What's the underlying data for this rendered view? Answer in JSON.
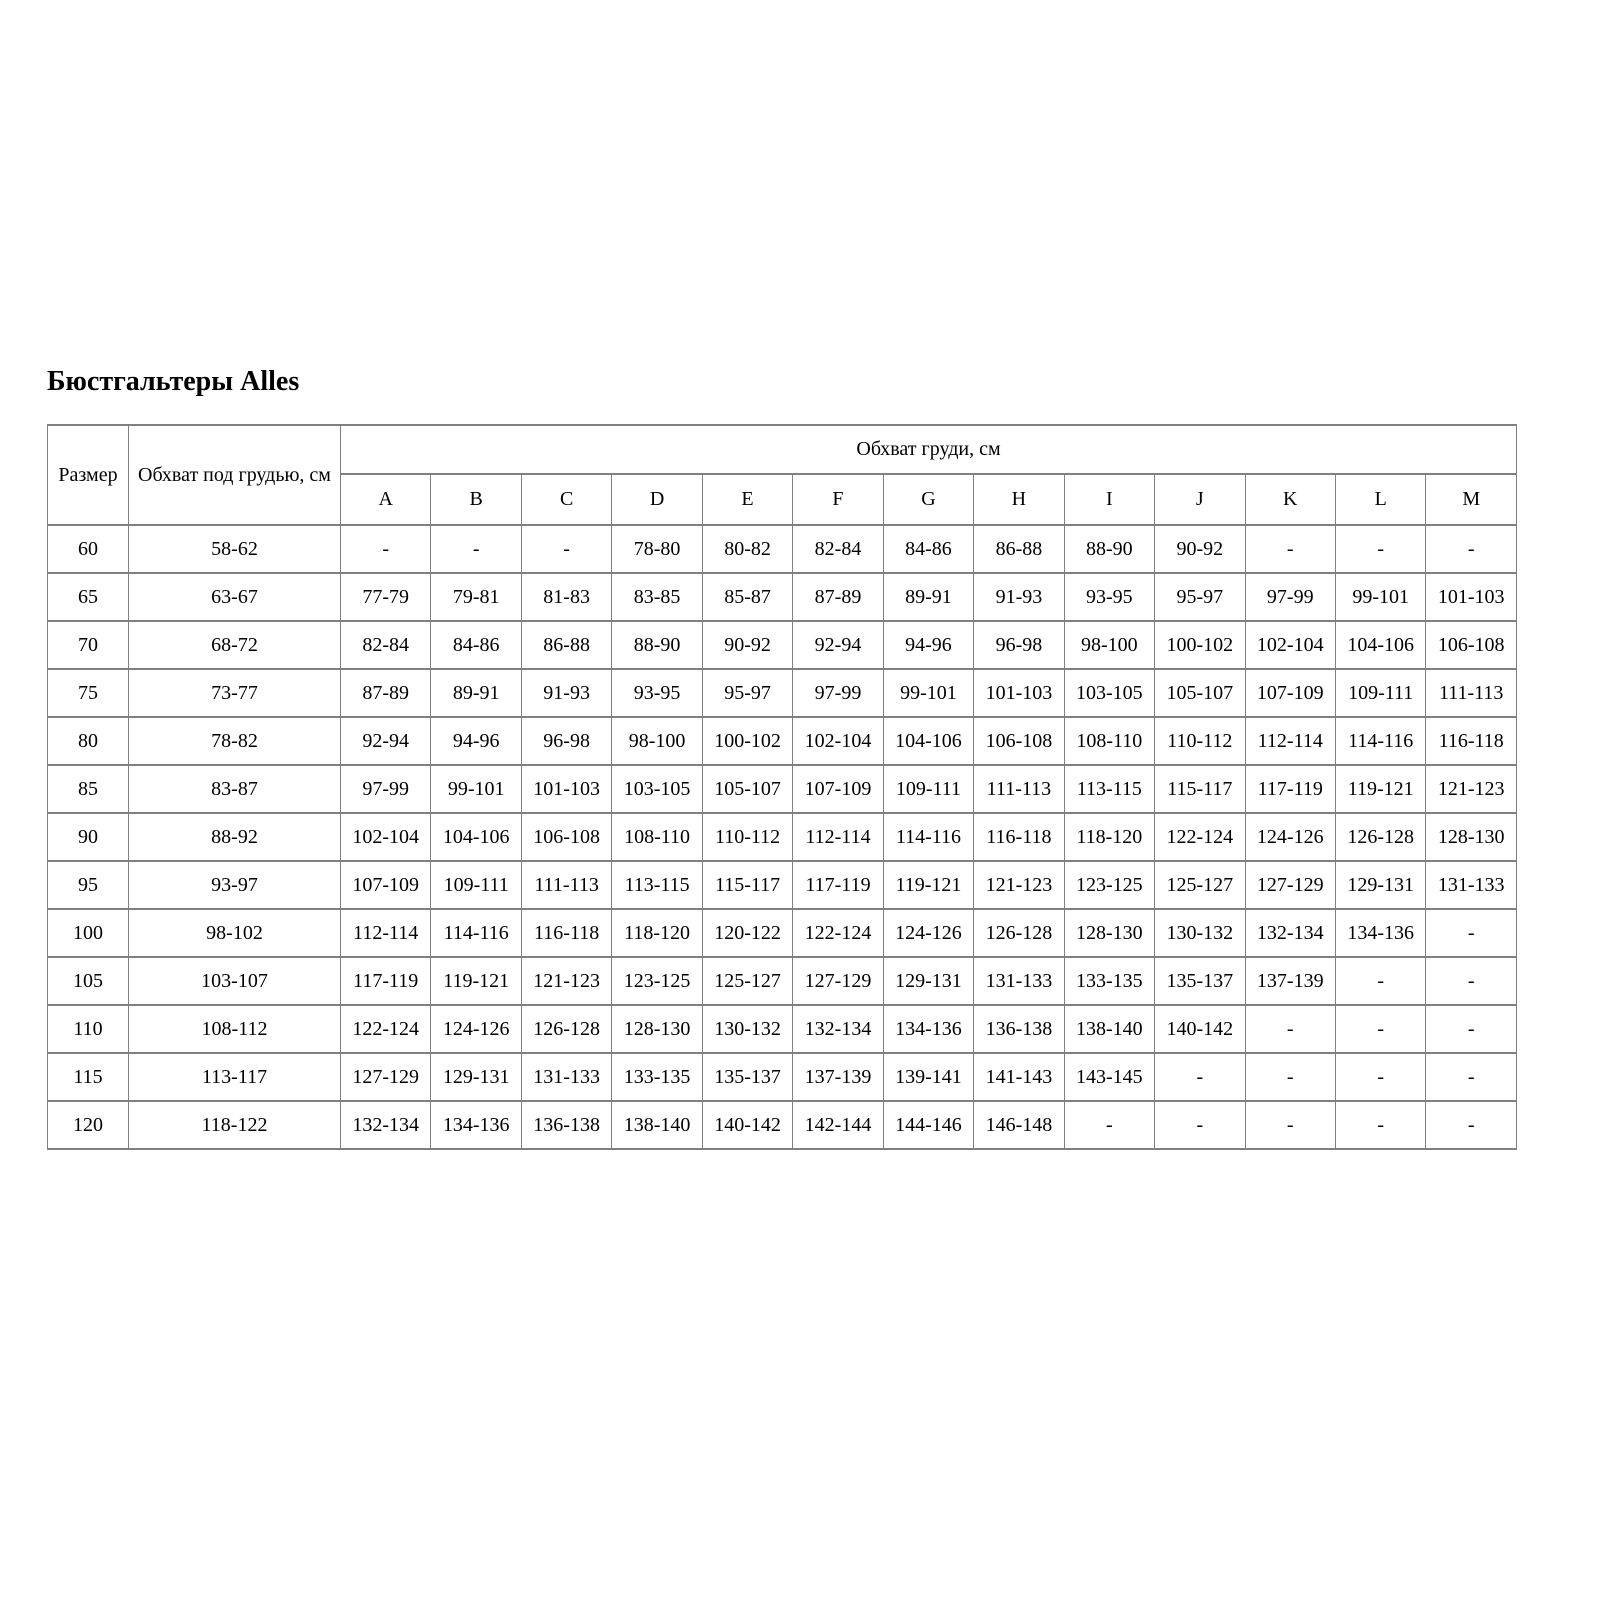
{
  "page": {
    "title": "Бюстгальтеры Alles"
  },
  "colors": {
    "border": "#808080",
    "text": "#000000",
    "background": "#ffffff"
  },
  "table": {
    "header": {
      "size_label": "Размер",
      "underbust_label": "Обхват под грудью, см",
      "bust_group_label": "Обхват груди, см",
      "cup_columns": [
        "A",
        "B",
        "C",
        "D",
        "E",
        "F",
        "G",
        "H",
        "I",
        "J",
        "K",
        "L",
        "M"
      ]
    },
    "rows": [
      {
        "size": "60",
        "underbust": "58-62",
        "cups": [
          "-",
          "-",
          "-",
          "78-80",
          "80-82",
          "82-84",
          "84-86",
          "86-88",
          "88-90",
          "90-92",
          "-",
          "-",
          "-"
        ]
      },
      {
        "size": "65",
        "underbust": "63-67",
        "cups": [
          "77-79",
          "79-81",
          "81-83",
          "83-85",
          "85-87",
          "87-89",
          "89-91",
          "91-93",
          "93-95",
          "95-97",
          "97-99",
          "99-101",
          "101-103"
        ]
      },
      {
        "size": "70",
        "underbust": "68-72",
        "cups": [
          "82-84",
          "84-86",
          "86-88",
          "88-90",
          "90-92",
          "92-94",
          "94-96",
          "96-98",
          "98-100",
          "100-102",
          "102-104",
          "104-106",
          "106-108"
        ]
      },
      {
        "size": "75",
        "underbust": "73-77",
        "cups": [
          "87-89",
          "89-91",
          "91-93",
          "93-95",
          "95-97",
          "97-99",
          "99-101",
          "101-103",
          "103-105",
          "105-107",
          "107-109",
          "109-111",
          "111-113"
        ]
      },
      {
        "size": "80",
        "underbust": "78-82",
        "cups": [
          "92-94",
          "94-96",
          "96-98",
          "98-100",
          "100-102",
          "102-104",
          "104-106",
          "106-108",
          "108-110",
          "110-112",
          "112-114",
          "114-116",
          "116-118"
        ]
      },
      {
        "size": "85",
        "underbust": "83-87",
        "cups": [
          "97-99",
          "99-101",
          "101-103",
          "103-105",
          "105-107",
          "107-109",
          "109-111",
          "111-113",
          "113-115",
          "115-117",
          "117-119",
          "119-121",
          "121-123"
        ]
      },
      {
        "size": "90",
        "underbust": "88-92",
        "cups": [
          "102-104",
          "104-106",
          "106-108",
          "108-110",
          "110-112",
          "112-114",
          "114-116",
          "116-118",
          "118-120",
          "122-124",
          "124-126",
          "126-128",
          "128-130"
        ]
      },
      {
        "size": "95",
        "underbust": "93-97",
        "cups": [
          "107-109",
          "109-111",
          "111-113",
          "113-115",
          "115-117",
          "117-119",
          "119-121",
          "121-123",
          "123-125",
          "125-127",
          "127-129",
          "129-131",
          "131-133"
        ]
      },
      {
        "size": "100",
        "underbust": "98-102",
        "cups": [
          "112-114",
          "114-116",
          "116-118",
          "118-120",
          "120-122",
          "122-124",
          "124-126",
          "126-128",
          "128-130",
          "130-132",
          "132-134",
          "134-136",
          "-"
        ]
      },
      {
        "size": "105",
        "underbust": "103-107",
        "cups": [
          "117-119",
          "119-121",
          "121-123",
          "123-125",
          "125-127",
          "127-129",
          "129-131",
          "131-133",
          "133-135",
          "135-137",
          "137-139",
          "-",
          "-"
        ]
      },
      {
        "size": "110",
        "underbust": "108-112",
        "cups": [
          "122-124",
          "124-126",
          "126-128",
          "128-130",
          "130-132",
          "132-134",
          "134-136",
          "136-138",
          "138-140",
          "140-142",
          "-",
          "-",
          "-"
        ]
      },
      {
        "size": "115",
        "underbust": "113-117",
        "cups": [
          "127-129",
          "129-131",
          "131-133",
          "133-135",
          "135-137",
          "137-139",
          "139-141",
          "141-143",
          "143-145",
          "-",
          "-",
          "-",
          "-"
        ]
      },
      {
        "size": "120",
        "underbust": "118-122",
        "cups": [
          "132-134",
          "134-136",
          "136-138",
          "138-140",
          "140-142",
          "142-144",
          "144-146",
          "146-148",
          "-",
          "-",
          "-",
          "-",
          "-"
        ]
      }
    ]
  }
}
